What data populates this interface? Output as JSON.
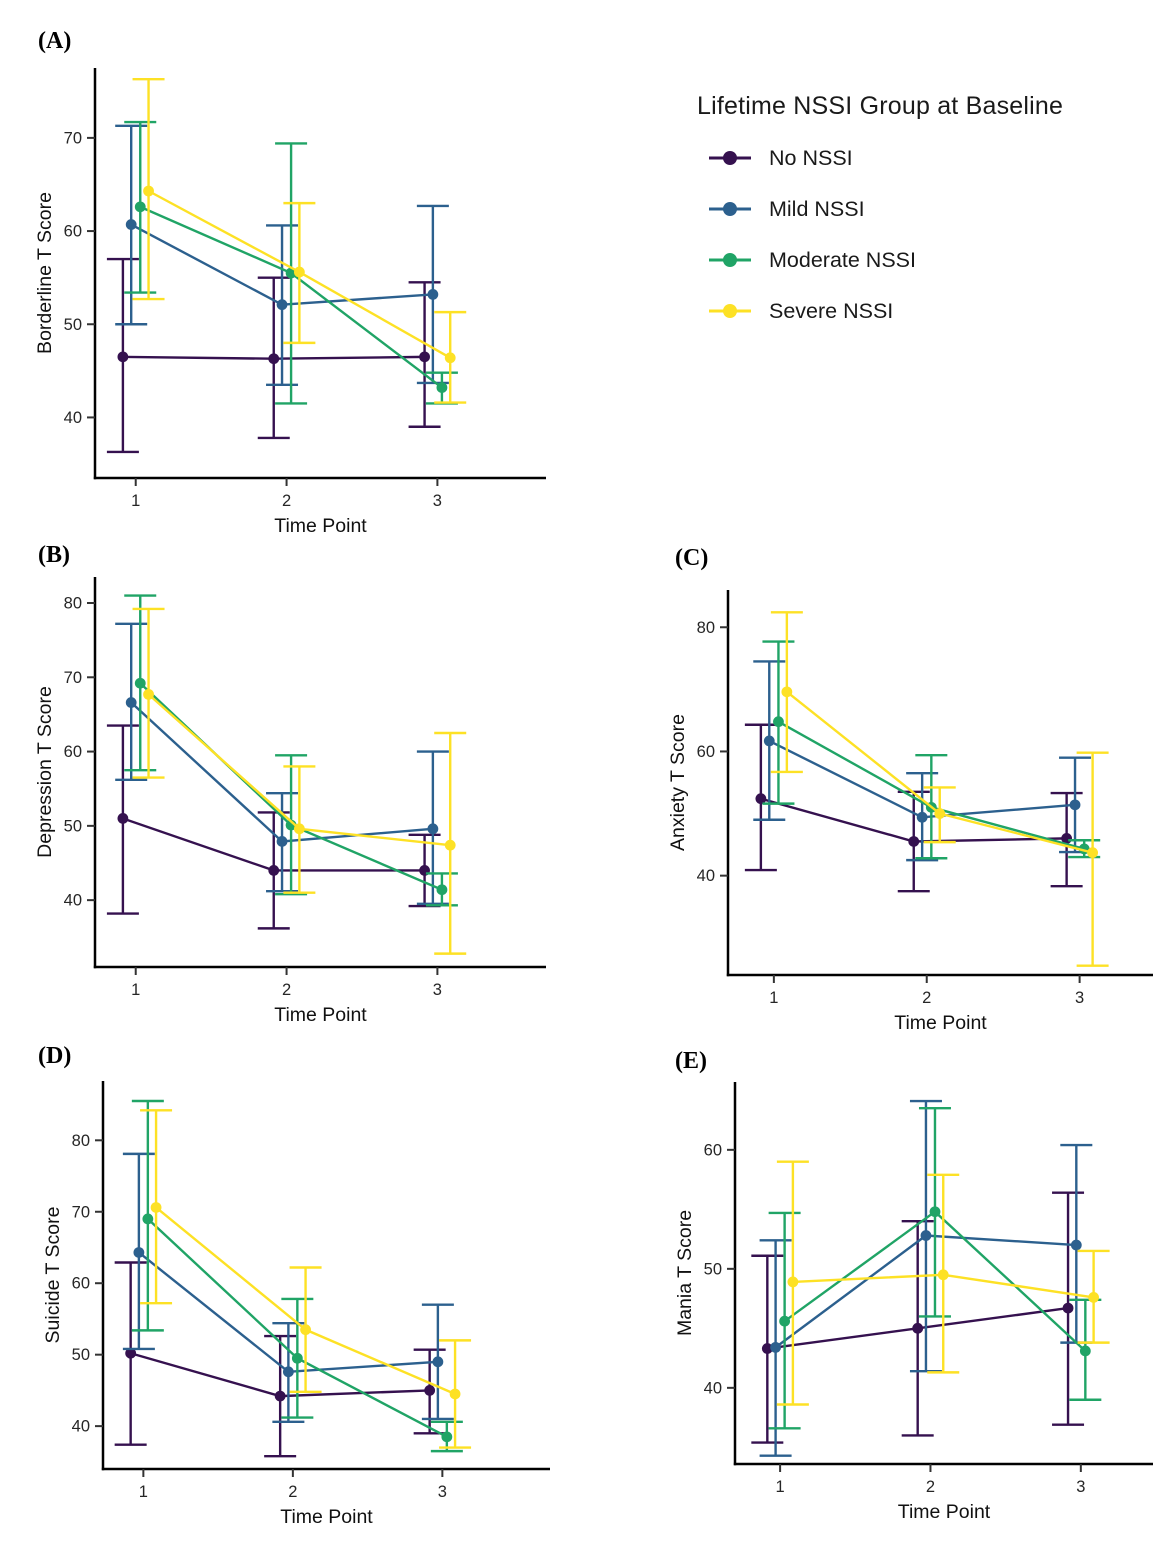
{
  "figure": {
    "legend": {
      "title": "Lifetime NSSI Group at Baseline",
      "entries": [
        {
          "label": "No NSSI",
          "color": "#35114F"
        },
        {
          "label": "Mild NSSI",
          "color": "#2C608E"
        },
        {
          "label": "Moderate NSSI",
          "color": "#20A466"
        },
        {
          "label": "Severe NSSI",
          "color": "#FDE125"
        }
      ]
    },
    "xlabel": "Time Point",
    "xtick_labels": [
      "1",
      "2",
      "3"
    ]
  },
  "chart_data": [
    {
      "panel_label": "(A)",
      "type": "line",
      "ylabel": "Borderline T Score",
      "xlabel": "Time Point",
      "x": [
        1,
        2,
        3
      ],
      "xtick_labels": [
        "1",
        "2",
        "3"
      ],
      "yticks": [
        40,
        50,
        60,
        70
      ],
      "ylim": [
        33.5,
        77.5
      ],
      "grid": false,
      "legend_position": "outside right of panel A",
      "series": [
        {
          "name": "No NSSI",
          "color": "#35114F",
          "values": [
            46.5,
            46.3,
            46.5
          ],
          "ci_lower": [
            36.3,
            37.8,
            39.0
          ],
          "ci_upper": [
            57.0,
            55.0,
            54.5
          ]
        },
        {
          "name": "Mild NSSI",
          "color": "#2C608E",
          "values": [
            60.7,
            52.1,
            53.2
          ],
          "ci_lower": [
            50.0,
            43.5,
            43.7
          ],
          "ci_upper": [
            71.3,
            60.6,
            62.7
          ]
        },
        {
          "name": "Moderate NSSI",
          "color": "#20A466",
          "values": [
            62.6,
            55.5,
            43.2
          ],
          "ci_lower": [
            53.4,
            41.5,
            41.5
          ],
          "ci_upper": [
            71.7,
            69.4,
            44.8
          ]
        },
        {
          "name": "Severe NSSI",
          "color": "#FDE125",
          "values": [
            64.3,
            55.6,
            46.4
          ],
          "ci_lower": [
            52.7,
            48.0,
            41.6
          ],
          "ci_upper": [
            76.3,
            63.0,
            51.3
          ]
        }
      ]
    },
    {
      "panel_label": "(B)",
      "type": "line",
      "ylabel": "Depression T Score",
      "xlabel": "Time Point",
      "x": [
        1,
        2,
        3
      ],
      "xtick_labels": [
        "1",
        "2",
        "3"
      ],
      "yticks": [
        40,
        50,
        60,
        70,
        80
      ],
      "ylim": [
        31.0,
        83.5
      ],
      "grid": false,
      "series": [
        {
          "name": "No NSSI",
          "color": "#35114F",
          "values": [
            51.0,
            44.0,
            44.0
          ],
          "ci_lower": [
            38.2,
            36.2,
            39.2
          ],
          "ci_upper": [
            63.5,
            51.8,
            48.8
          ]
        },
        {
          "name": "Mild NSSI",
          "color": "#2C608E",
          "values": [
            66.6,
            47.9,
            49.6
          ],
          "ci_lower": [
            56.2,
            41.2,
            39.5
          ],
          "ci_upper": [
            77.2,
            54.4,
            60.0
          ]
        },
        {
          "name": "Moderate NSSI",
          "color": "#20A466",
          "values": [
            69.2,
            50.1,
            41.4
          ],
          "ci_lower": [
            57.5,
            40.8,
            39.3
          ],
          "ci_upper": [
            81.0,
            59.5,
            43.6
          ]
        },
        {
          "name": "Severe NSSI",
          "color": "#FDE125",
          "values": [
            67.7,
            49.6,
            47.4
          ],
          "ci_lower": [
            56.5,
            41.0,
            32.8
          ],
          "ci_upper": [
            79.2,
            58.0,
            62.5
          ]
        }
      ]
    },
    {
      "panel_label": "(C)",
      "type": "line",
      "ylabel": "Anxiety T Score",
      "xlabel": "Time Point",
      "x": [
        1,
        2,
        3
      ],
      "xtick_labels": [
        "1",
        "2",
        "3"
      ],
      "yticks": [
        40,
        60,
        80
      ],
      "ylim": [
        24.0,
        86.0
      ],
      "grid": false,
      "series": [
        {
          "name": "No NSSI",
          "color": "#35114F",
          "values": [
            52.4,
            45.5,
            46.0
          ],
          "ci_lower": [
            40.9,
            37.5,
            38.3
          ],
          "ci_upper": [
            64.3,
            53.5,
            53.3
          ]
        },
        {
          "name": "Mild NSSI",
          "color": "#2C608E",
          "values": [
            61.7,
            49.4,
            51.4
          ],
          "ci_lower": [
            49.0,
            42.5,
            43.8
          ],
          "ci_upper": [
            74.5,
            56.5,
            59.0
          ]
        },
        {
          "name": "Moderate NSSI",
          "color": "#20A466",
          "values": [
            64.8,
            51.0,
            44.3
          ],
          "ci_lower": [
            51.6,
            42.8,
            43.0
          ],
          "ci_upper": [
            77.7,
            59.4,
            45.7
          ]
        },
        {
          "name": "Severe NSSI",
          "color": "#FDE125",
          "values": [
            69.6,
            50.0,
            43.7
          ],
          "ci_lower": [
            56.7,
            45.4,
            25.5
          ],
          "ci_upper": [
            82.4,
            54.2,
            59.8
          ]
        }
      ]
    },
    {
      "panel_label": "(D)",
      "type": "line",
      "ylabel": "Suicide T Score",
      "xlabel": "Time Point",
      "x": [
        1,
        2,
        3
      ],
      "xtick_labels": [
        "1",
        "2",
        "3"
      ],
      "yticks": [
        40,
        50,
        60,
        70,
        80
      ],
      "ylim": [
        34.0,
        88.3
      ],
      "grid": false,
      "series": [
        {
          "name": "No NSSI",
          "color": "#35114F",
          "values": [
            50.2,
            44.2,
            45.0
          ],
          "ci_lower": [
            37.4,
            35.8,
            39.0
          ],
          "ci_upper": [
            62.9,
            52.6,
            50.7
          ]
        },
        {
          "name": "Mild NSSI",
          "color": "#2C608E",
          "values": [
            64.3,
            47.6,
            49.0
          ],
          "ci_lower": [
            50.8,
            40.6,
            41.0
          ],
          "ci_upper": [
            78.1,
            54.4,
            57.0
          ]
        },
        {
          "name": "Moderate NSSI",
          "color": "#20A466",
          "values": [
            69.0,
            49.5,
            38.5
          ],
          "ci_lower": [
            53.4,
            41.2,
            36.5
          ],
          "ci_upper": [
            85.5,
            57.8,
            40.6
          ]
        },
        {
          "name": "Severe NSSI",
          "color": "#FDE125",
          "values": [
            70.6,
            53.5,
            44.5
          ],
          "ci_lower": [
            57.2,
            44.8,
            37.0
          ],
          "ci_upper": [
            84.2,
            62.2,
            52.0
          ]
        }
      ]
    },
    {
      "panel_label": "(E)",
      "type": "line",
      "ylabel": "Mania T Score",
      "xlabel": "Time Point",
      "x": [
        1,
        2,
        3
      ],
      "xtick_labels": [
        "1",
        "2",
        "3"
      ],
      "yticks": [
        40,
        50,
        60
      ],
      "ylim": [
        33.6,
        65.7
      ],
      "grid": false,
      "series": [
        {
          "name": "No NSSI",
          "color": "#35114F",
          "values": [
            43.3,
            45.0,
            46.7
          ],
          "ci_lower": [
            35.4,
            36.0,
            36.9
          ],
          "ci_upper": [
            51.1,
            54.0,
            56.4
          ]
        },
        {
          "name": "Mild NSSI",
          "color": "#2C608E",
          "values": [
            43.4,
            52.8,
            52.0
          ],
          "ci_lower": [
            34.3,
            41.4,
            43.8
          ],
          "ci_upper": [
            52.4,
            64.1,
            60.4
          ]
        },
        {
          "name": "Moderate NSSI",
          "color": "#20A466",
          "values": [
            45.6,
            54.8,
            43.1
          ],
          "ci_lower": [
            36.6,
            46.0,
            39.0
          ],
          "ci_upper": [
            54.7,
            63.5,
            47.4
          ]
        },
        {
          "name": "Severe NSSI",
          "color": "#FDE125",
          "values": [
            48.9,
            49.5,
            47.6
          ],
          "ci_lower": [
            38.6,
            41.3,
            43.8
          ],
          "ci_upper": [
            59.0,
            57.9,
            51.5
          ]
        }
      ]
    }
  ]
}
